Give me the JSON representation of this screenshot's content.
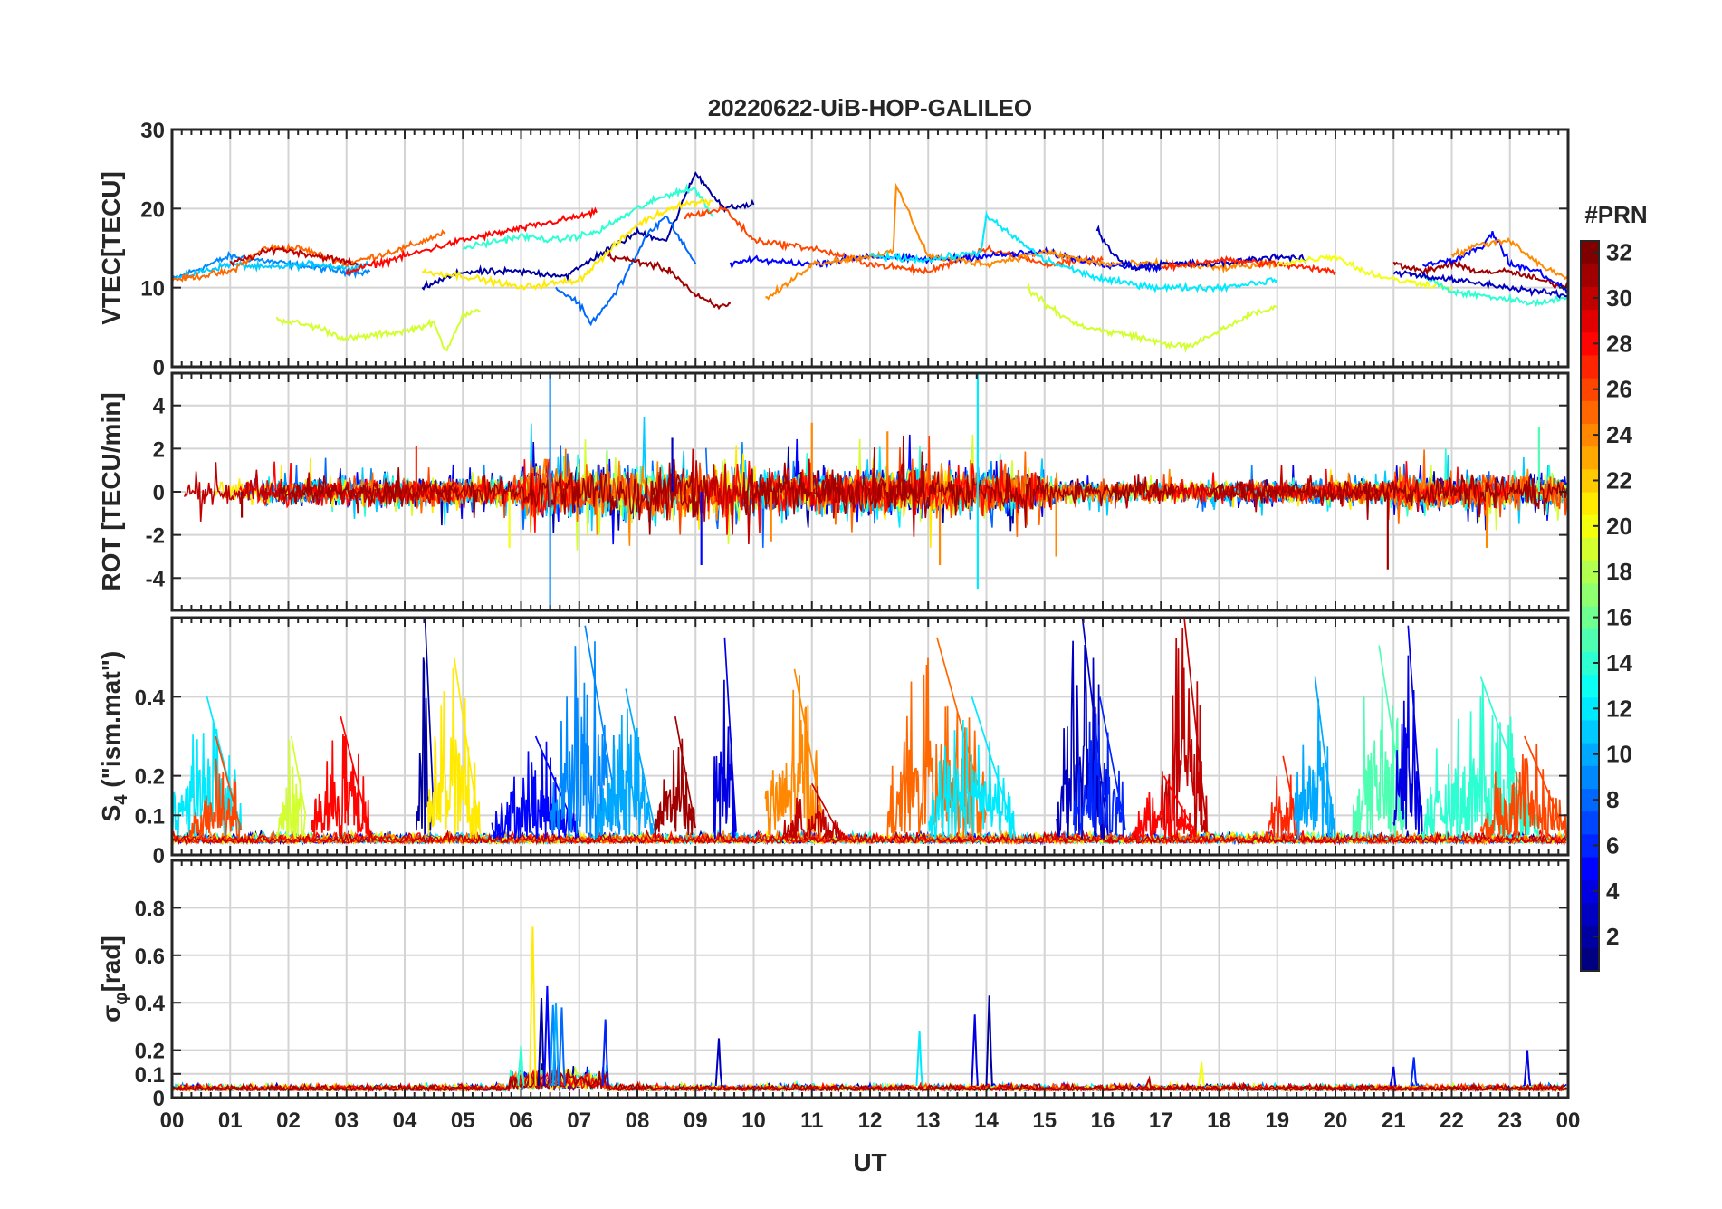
{
  "chart_data": [
    {
      "type": "line",
      "title": "20220622-UiB-HOP-GALILEO",
      "ylabel": "VTEC[TECU]",
      "xlabel": "",
      "x_unit": "hours UT",
      "xlim": [
        0,
        24
      ],
      "ylim": [
        0,
        30
      ],
      "yticks": [
        0,
        10,
        20,
        30
      ],
      "grid": true,
      "series": [
        {
          "prn": 9,
          "x": [
            0,
            1,
            2,
            3,
            3.4
          ],
          "y": [
            11,
            14,
            13,
            12,
            12
          ]
        },
        {
          "prn": 11,
          "x": [
            0,
            1,
            1.6,
            2.5,
            3,
            3.4
          ],
          "y": [
            11,
            13,
            12.5,
            13,
            12.5,
            13
          ]
        },
        {
          "prn": 25,
          "x": [
            0,
            1,
            1.6,
            2.2,
            3,
            4,
            4.7
          ],
          "y": [
            11,
            12,
            15,
            15,
            13,
            15,
            17
          ]
        },
        {
          "prn": 30,
          "x": [
            1,
            1.8,
            2.5,
            3.2
          ],
          "y": [
            13,
            15,
            14,
            13
          ]
        },
        {
          "prn": 19,
          "x": [
            1.8,
            2.5,
            3,
            3.5,
            4,
            4.5,
            4.7,
            5,
            5.3
          ],
          "y": [
            6,
            5,
            3.5,
            4,
            4.5,
            5.5,
            2,
            6.5,
            7
          ]
        },
        {
          "prn": 28,
          "x": [
            3,
            4,
            5,
            6,
            7,
            7.3
          ],
          "y": [
            12,
            14,
            16,
            17.5,
            19,
            19.5
          ]
        },
        {
          "prn": 2,
          "x": [
            4.3,
            5,
            6,
            6.8,
            7.3,
            8,
            8.5,
            9,
            9.5,
            10
          ],
          "y": [
            10,
            12,
            12,
            11.5,
            14,
            17,
            16,
            24.5,
            20,
            20.5
          ]
        },
        {
          "prn": 14,
          "x": [
            5,
            6,
            6.6,
            7.3,
            8,
            8.6,
            9,
            9.3
          ],
          "y": [
            15,
            16.5,
            16,
            17,
            20,
            22,
            22.5,
            19
          ]
        },
        {
          "prn": 21,
          "x": [
            4.3,
            5,
            6,
            7,
            8,
            8.7,
            9.3
          ],
          "y": [
            12,
            11.5,
            10,
            11,
            18,
            20.5,
            21
          ]
        },
        {
          "prn": 8,
          "x": [
            6.6,
            7,
            7.2,
            7.6,
            8.2,
            8.5,
            9
          ],
          "y": [
            10,
            8,
            5.5,
            9,
            17,
            19,
            13
          ]
        },
        {
          "prn": 31,
          "x": [
            7.5,
            8.2,
            8.6,
            9,
            9.4,
            9.6
          ],
          "y": [
            14,
            13,
            12,
            9,
            7.5,
            8
          ]
        },
        {
          "prn": 26,
          "x": [
            8.8,
            9.5,
            10,
            11,
            12,
            13,
            14,
            15,
            16
          ],
          "y": [
            19,
            20,
            16,
            15,
            13,
            12,
            15,
            13,
            13.5
          ]
        },
        {
          "prn": 5,
          "x": [
            9.6,
            10,
            11,
            12,
            13,
            14,
            15,
            16,
            17
          ],
          "y": [
            13,
            13.5,
            13,
            14,
            13.5,
            14,
            14.5,
            13,
            12.5
          ]
        },
        {
          "prn": 24,
          "x": [
            10.2,
            10.5,
            11,
            12,
            12.4,
            12.45,
            13,
            14,
            15,
            16,
            17,
            18,
            19
          ],
          "y": [
            8.5,
            10,
            13,
            14,
            14.5,
            23,
            14,
            13,
            14.5,
            13,
            13,
            12.5,
            13
          ]
        },
        {
          "prn": 12,
          "x": [
            12,
            13,
            13.9,
            14,
            15,
            16,
            17,
            18,
            19
          ],
          "y": [
            14,
            13.5,
            14.5,
            19,
            13.5,
            11,
            10,
            10,
            11
          ]
        },
        {
          "prn": 19,
          "x": [
            14.7,
            15,
            15.5,
            16,
            16.5,
            17,
            17.5,
            18,
            18.5,
            19
          ],
          "y": [
            10,
            8,
            5.5,
            4.5,
            4,
            3,
            2.5,
            4.5,
            6.5,
            7.5
          ]
        },
        {
          "prn": 3,
          "x": [
            15.9,
            16.2,
            16.5,
            17,
            18,
            19,
            19.5
          ],
          "y": [
            17.5,
            14,
            12.5,
            13,
            13,
            14,
            13.5
          ]
        },
        {
          "prn": 27,
          "x": [
            17,
            18,
            19,
            19.5,
            20
          ],
          "y": [
            12.5,
            13.5,
            13,
            12.5,
            12
          ]
        },
        {
          "prn": 20,
          "x": [
            19,
            20,
            20.5,
            21,
            21.5,
            22
          ],
          "y": [
            13,
            14,
            12,
            11,
            10.5,
            10
          ]
        },
        {
          "prn": 31,
          "x": [
            21,
            21.5,
            22,
            22.5,
            23,
            23.5,
            24
          ],
          "y": [
            13,
            12,
            13,
            12,
            12,
            11,
            10
          ]
        },
        {
          "prn": 5,
          "x": [
            21.5,
            22,
            22.5,
            22.7,
            23,
            23.5,
            24
          ],
          "y": [
            13,
            13.5,
            15,
            17,
            13,
            12,
            9.5
          ]
        },
        {
          "prn": 14,
          "x": [
            21.5,
            22,
            22.5,
            23,
            23.5,
            24
          ],
          "y": [
            11.5,
            9.5,
            9,
            8.5,
            8,
            9
          ]
        },
        {
          "prn": 24,
          "x": [
            22,
            22.5,
            23,
            23.5,
            24
          ],
          "y": [
            14,
            15.5,
            16,
            13,
            11
          ]
        },
        {
          "prn": 3,
          "x": [
            21,
            22,
            23,
            23.5,
            24
          ],
          "y": [
            12,
            11,
            10,
            9.5,
            9
          ]
        }
      ]
    },
    {
      "type": "line",
      "ylabel": "ROT [TECU/min]",
      "xlim": [
        0,
        24
      ],
      "ylim": [
        -5.5,
        5.5
      ],
      "yticks": [
        -4,
        -2,
        0,
        2,
        4
      ],
      "grid": true,
      "activity": [
        {
          "t0": 0,
          "t1": 6,
          "amp": 0.6
        },
        {
          "t0": 6,
          "t1": 10,
          "amp": 1.3
        },
        {
          "t0": 10,
          "t1": 15,
          "amp": 1.0
        },
        {
          "t0": 15,
          "t1": 21,
          "amp": 0.5
        },
        {
          "t0": 21,
          "t1": 24,
          "amp": 0.8
        }
      ],
      "spikes": [
        {
          "x": 6.5,
          "y": 5.5,
          "prn": 9
        },
        {
          "x": 6.5,
          "y": -5.5,
          "prn": 9
        },
        {
          "x": 13.85,
          "y": 5.5,
          "prn": 12
        },
        {
          "x": 13.85,
          "y": -4.5,
          "prn": 12
        },
        {
          "x": 11.0,
          "y": 3.2,
          "prn": 24
        },
        {
          "x": 10.3,
          "y": -2.3,
          "prn": 24
        },
        {
          "x": 13.2,
          "y": -3.4,
          "prn": 24
        },
        {
          "x": 9.1,
          "y": -3.4,
          "prn": 5
        },
        {
          "x": 15.2,
          "y": -3.0,
          "prn": 24
        },
        {
          "x": 20.9,
          "y": -3.6,
          "prn": 31
        },
        {
          "x": 23.5,
          "y": 3.0,
          "prn": 15
        },
        {
          "x": 22.6,
          "y": -2.6,
          "prn": 24
        },
        {
          "x": 1.2,
          "y": -1.2,
          "prn": 31
        },
        {
          "x": 4.2,
          "y": 2.1,
          "prn": 27
        },
        {
          "x": 5.8,
          "y": -2.6,
          "prn": 20
        },
        {
          "x": 8.6,
          "y": 2.5,
          "prn": 3
        },
        {
          "x": 12.3,
          "y": 2.8,
          "prn": 24
        }
      ]
    },
    {
      "type": "line",
      "ylabel": "S4 (\"ism.mat\")",
      "ylabel_main": "S",
      "ylabel_sub": "4",
      "ylabel_rest": " (\"ism.mat\")",
      "xlim": [
        0,
        24
      ],
      "ylim": [
        0,
        0.6
      ],
      "yticks": [
        0,
        0.1,
        0.2,
        0.4
      ],
      "ytick_labels": [
        "0",
        "0.1",
        "0.2",
        "0.4"
      ],
      "grid": true,
      "bursts": [
        {
          "t0": 0.0,
          "t1": 1.2,
          "peak": 0.4,
          "prn": 12
        },
        {
          "t0": 0.3,
          "t1": 1.2,
          "peak": 0.3,
          "prn": 26
        },
        {
          "t0": 1.8,
          "t1": 2.3,
          "peak": 0.3,
          "prn": 19
        },
        {
          "t0": 2.4,
          "t1": 3.4,
          "peak": 0.35,
          "prn": 28
        },
        {
          "t0": 4.2,
          "t1": 4.5,
          "peak": 0.6,
          "prn": 2
        },
        {
          "t0": 4.4,
          "t1": 5.3,
          "peak": 0.5,
          "prn": 21
        },
        {
          "t0": 5.5,
          "t1": 7.0,
          "peak": 0.3,
          "prn": 5
        },
        {
          "t0": 6.5,
          "t1": 7.7,
          "peak": 0.58,
          "prn": 9
        },
        {
          "t0": 7.3,
          "t1": 8.3,
          "peak": 0.42,
          "prn": 10
        },
        {
          "t0": 8.3,
          "t1": 9.0,
          "peak": 0.35,
          "prn": 31
        },
        {
          "t0": 9.3,
          "t1": 9.7,
          "peak": 0.55,
          "prn": 4
        },
        {
          "t0": 10.2,
          "t1": 11.2,
          "peak": 0.47,
          "prn": 24
        },
        {
          "t0": 10.5,
          "t1": 11.5,
          "peak": 0.18,
          "prn": 30
        },
        {
          "t0": 12.3,
          "t1": 14.0,
          "peak": 0.55,
          "prn": 25
        },
        {
          "t0": 13.0,
          "t1": 14.5,
          "peak": 0.4,
          "prn": 12
        },
        {
          "t0": 15.2,
          "t1": 16.1,
          "peak": 0.6,
          "prn": 3
        },
        {
          "t0": 15.5,
          "t1": 16.4,
          "peak": 0.4,
          "prn": 6
        },
        {
          "t0": 17.0,
          "t1": 17.8,
          "peak": 0.6,
          "prn": 30
        },
        {
          "t0": 16.5,
          "t1": 17.6,
          "peak": 0.2,
          "prn": 28
        },
        {
          "t0": 18.8,
          "t1": 19.4,
          "peak": 0.25,
          "prn": 27
        },
        {
          "t0": 19.3,
          "t1": 20.0,
          "peak": 0.45,
          "prn": 10
        },
        {
          "t0": 20.3,
          "t1": 21.2,
          "peak": 0.53,
          "prn": 15
        },
        {
          "t0": 21.0,
          "t1": 21.5,
          "peak": 0.58,
          "prn": 4
        },
        {
          "t0": 21.5,
          "t1": 23.5,
          "peak": 0.45,
          "prn": 14
        },
        {
          "t0": 22.5,
          "t1": 24.0,
          "peak": 0.3,
          "prn": 26
        }
      ]
    },
    {
      "type": "line",
      "ylabel": "σφ[rad]",
      "ylabel_main": "σ",
      "ylabel_sub": "φ",
      "ylabel_rest": "[rad]",
      "xlabel": "UT",
      "xlim": [
        0,
        24
      ],
      "ylim": [
        0,
        1.0
      ],
      "yticks": [
        0,
        0.1,
        0.2,
        0.4,
        0.6,
        0.8
      ],
      "ytick_labels": [
        "0",
        "0.1",
        "0.2",
        "0.4",
        "0.6",
        "0.8"
      ],
      "grid": true,
      "spikes": [
        {
          "x": 6.2,
          "y": 0.72,
          "prn": 21
        },
        {
          "x": 6.35,
          "y": 0.42,
          "prn": 2
        },
        {
          "x": 6.45,
          "y": 0.47,
          "prn": 5
        },
        {
          "x": 6.55,
          "y": 0.39,
          "prn": 9
        },
        {
          "x": 6.6,
          "y": 0.4,
          "prn": 10
        },
        {
          "x": 6.7,
          "y": 0.38,
          "prn": 8
        },
        {
          "x": 6.0,
          "y": 0.22,
          "prn": 14
        },
        {
          "x": 7.45,
          "y": 0.33,
          "prn": 6
        },
        {
          "x": 9.4,
          "y": 0.25,
          "prn": 3
        },
        {
          "x": 12.85,
          "y": 0.28,
          "prn": 12
        },
        {
          "x": 13.8,
          "y": 0.35,
          "prn": 4
        },
        {
          "x": 14.05,
          "y": 0.43,
          "prn": 2
        },
        {
          "x": 21.0,
          "y": 0.13,
          "prn": 4
        },
        {
          "x": 21.35,
          "y": 0.17,
          "prn": 6
        },
        {
          "x": 23.3,
          "y": 0.2,
          "prn": 4
        },
        {
          "x": 17.7,
          "y": 0.15,
          "prn": 20
        },
        {
          "x": 16.8,
          "y": 0.08,
          "prn": 30
        }
      ]
    }
  ],
  "x_ticks": [
    "00",
    "01",
    "02",
    "03",
    "04",
    "05",
    "06",
    "07",
    "08",
    "09",
    "10",
    "11",
    "12",
    "13",
    "14",
    "15",
    "16",
    "17",
    "18",
    "19",
    "20",
    "21",
    "22",
    "23",
    "00"
  ],
  "colorbar": {
    "title": "#PRN",
    "min": 1,
    "max": 32,
    "ticks": [
      2,
      4,
      6,
      8,
      10,
      12,
      14,
      16,
      18,
      20,
      22,
      24,
      26,
      28,
      30,
      32
    ],
    "colormap": "jet"
  }
}
